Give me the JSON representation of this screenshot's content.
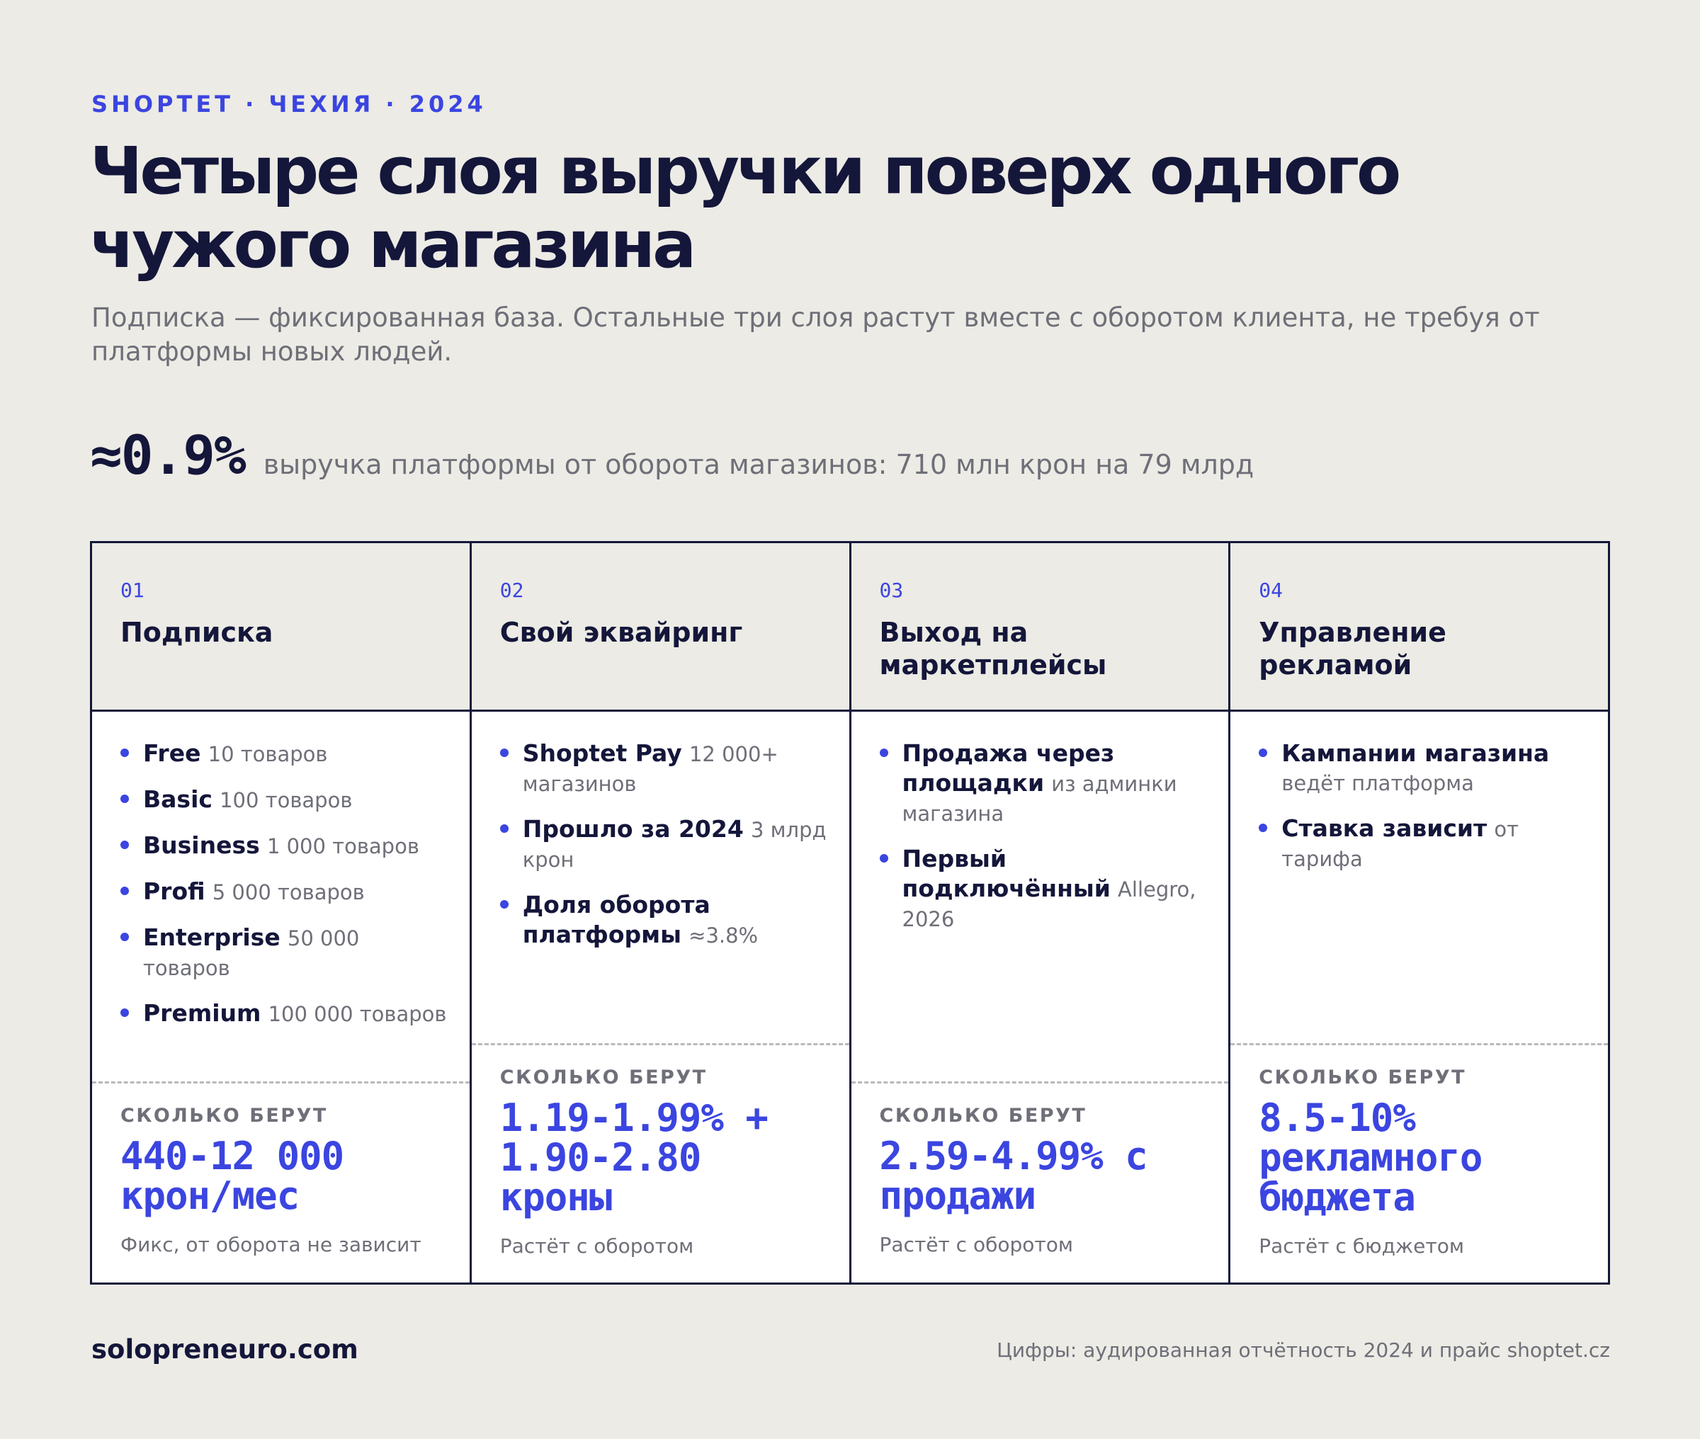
{
  "kicker": "SHOPTET · ЧЕХИЯ · 2024",
  "title": "Четыре слоя выручки поверх одного чужого магазина",
  "subtitle": "Подписка — фиксированная база. Остальные три слоя растут вместе с оборотом клиента, не требуя от платформы новых людей.",
  "stat": {
    "value": "≈0.9%",
    "label": "выручка платформы от оборота магазинов: 710 млн крон на 79 млрд"
  },
  "price_label": "СКОЛЬКО БЕРУТ",
  "columns": [
    {
      "num": "01",
      "title": "Подписка",
      "items": [
        {
          "main": "Free",
          "sub": "10 товаров"
        },
        {
          "main": "Basic",
          "sub": "100 товаров"
        },
        {
          "main": "Business",
          "sub": "1 000 товаров"
        },
        {
          "main": "Profi",
          "sub": "5 000 товаров"
        },
        {
          "main": "Enterprise",
          "sub": "50 000 товаров"
        },
        {
          "main": "Premium",
          "sub": "100 000 товаров"
        }
      ],
      "price": "440-12 000 крон/мес",
      "note": "Фикс, от оборота не зависит"
    },
    {
      "num": "02",
      "title": "Свой эквайринг",
      "items": [
        {
          "main": "Shoptet Pay",
          "sub": "12 000+ магазинов"
        },
        {
          "main": "Прошло за 2024",
          "sub": "3 млрд крон"
        },
        {
          "main": "Доля оборота платформы",
          "sub": "≈3.8%"
        }
      ],
      "price": "1.19-1.99% + 1.90-2.80 кроны",
      "note": "Растёт с оборотом"
    },
    {
      "num": "03",
      "title": "Выход на маркетплейсы",
      "items": [
        {
          "main": "Продажа через площадки",
          "sub": "из админки магазина"
        },
        {
          "main": "Первый подключённый",
          "sub": "Allegro, 2026"
        }
      ],
      "price": "2.59-4.99% с продажи",
      "note": "Растёт с оборотом"
    },
    {
      "num": "04",
      "title": "Управление рекламой",
      "items": [
        {
          "main": "Кампании магазина",
          "sub": "ведёт платформа"
        },
        {
          "main": "Ставка зависит",
          "sub": "от тарифа"
        }
      ],
      "price": "8.5-10% рекламного бюджета",
      "note": "Растёт с бюджетом"
    }
  ],
  "footer": {
    "site": "solopreneuro.com",
    "source": "Цифры: аудированная отчётность 2024 и прайс shoptet.cz"
  }
}
